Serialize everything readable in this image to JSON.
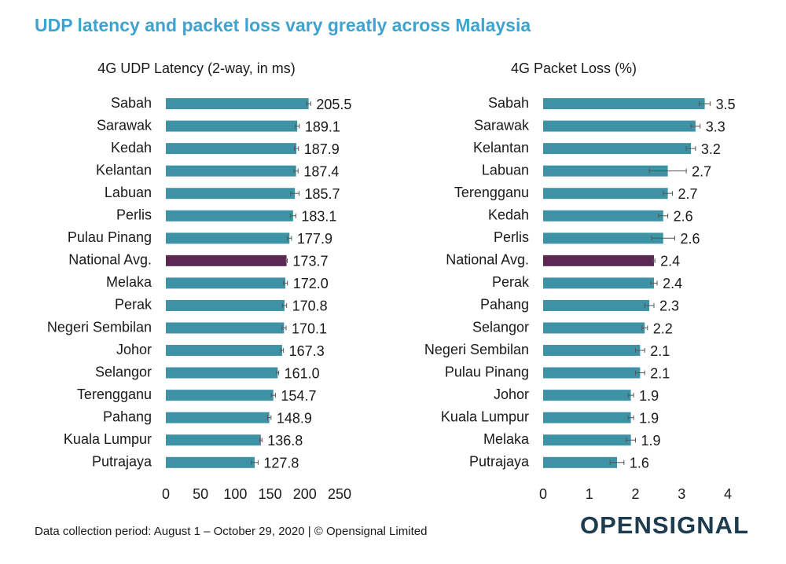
{
  "title": "UDP latency and packet loss vary greatly across Malaysia",
  "footer": "Data collection period: August 1 – October 29, 2020 | © Opensignal Limited",
  "logo": "OPENSIGNAL",
  "chart_data": [
    {
      "type": "bar",
      "orientation": "horizontal",
      "title": "4G UDP Latency (2-way, in ms)",
      "categories": [
        "Sabah",
        "Sarawak",
        "Kedah",
        "Kelantan",
        "Labuan",
        "Perlis",
        "Pulau Pinang",
        "National Avg.",
        "Melaka",
        "Perak",
        "Negeri Sembilan",
        "Johor",
        "Selangor",
        "Terengganu",
        "Pahang",
        "Kuala Lumpur",
        "Putrajaya"
      ],
      "values": [
        205.5,
        189.1,
        187.9,
        187.4,
        185.7,
        183.1,
        177.9,
        173.7,
        172,
        170.8,
        170.1,
        167.3,
        161,
        154.7,
        148.9,
        136.8,
        127.8
      ],
      "value_labels": [
        "205.5",
        "189.1",
        "187.9",
        "187.4",
        "185.7",
        "183.1",
        "177.9",
        "173.7",
        "172.0",
        "170.8",
        "170.1",
        "167.3",
        "161.0",
        "154.7",
        "148.9",
        "136.8",
        "127.8"
      ],
      "errors": [
        3,
        3,
        3,
        3,
        6,
        4,
        3,
        1,
        3,
        3,
        3,
        2,
        1.5,
        3,
        2.5,
        1.5,
        5
      ],
      "colors": [
        "#3d93a5",
        "#3d93a5",
        "#3d93a5",
        "#3d93a5",
        "#3d93a5",
        "#3d93a5",
        "#3d93a5",
        "#5b2753",
        "#3d93a5",
        "#3d93a5",
        "#3d93a5",
        "#3d93a5",
        "#3d93a5",
        "#3d93a5",
        "#3d93a5",
        "#3d93a5",
        "#3d93a5"
      ],
      "xlim": [
        0,
        250
      ],
      "xticks": [
        0,
        50,
        100,
        150,
        200,
        250
      ]
    },
    {
      "type": "bar",
      "orientation": "horizontal",
      "title": "4G Packet Loss (%)",
      "categories": [
        "Sabah",
        "Sarawak",
        "Kelantan",
        "Labuan",
        "Terengganu",
        "Kedah",
        "Perlis",
        "National Avg.",
        "Perak",
        "Pahang",
        "Selangor",
        "Negeri Sembilan",
        "Pulau Pinang",
        "Johor",
        "Kuala Lumpur",
        "Melaka",
        "Putrajaya"
      ],
      "values": [
        3.5,
        3.3,
        3.2,
        2.7,
        2.7,
        2.6,
        2.6,
        2.4,
        2.4,
        2.3,
        2.2,
        2.1,
        2.1,
        1.9,
        1.9,
        1.9,
        1.6
      ],
      "errors": [
        0.12,
        0.1,
        0.1,
        0.4,
        0.1,
        0.1,
        0.25,
        0.02,
        0.07,
        0.1,
        0.06,
        0.1,
        0.1,
        0.06,
        0.06,
        0.1,
        0.15
      ],
      "colors": [
        "#3d93a5",
        "#3d93a5",
        "#3d93a5",
        "#3d93a5",
        "#3d93a5",
        "#3d93a5",
        "#3d93a5",
        "#5b2753",
        "#3d93a5",
        "#3d93a5",
        "#3d93a5",
        "#3d93a5",
        "#3d93a5",
        "#3d93a5",
        "#3d93a5",
        "#3d93a5",
        "#3d93a5"
      ],
      "xlim": [
        0,
        4
      ],
      "xticks": [
        0,
        1,
        2,
        3,
        4
      ]
    }
  ]
}
